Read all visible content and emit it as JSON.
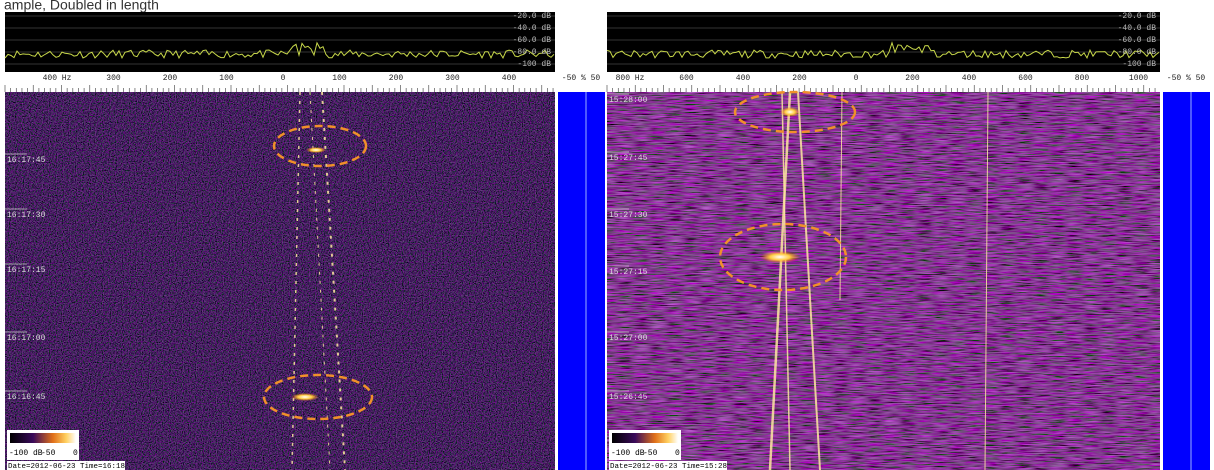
{
  "header": {
    "title": "ample, Doubled in length"
  },
  "panels": [
    {
      "db_labels": [
        "-20.0 dB",
        "-40.0 dB",
        "-60.0 dB",
        "-80.0 dB",
        "-100 dB"
      ],
      "freq_labels": [
        "400 Hz",
        "300",
        "200",
        "100",
        "0",
        "100",
        "200",
        "300",
        "400"
      ],
      "blue_scale": "-50 % 50",
      "time_labels": [
        "16:17:45",
        "16:17:30",
        "16:17:15",
        "16:17:00",
        "16:16:45"
      ],
      "colorbar_labels": [
        "-100 dB",
        "-50",
        "0"
      ],
      "footer": "Date=2012-06-23 Time=16:18"
    },
    {
      "db_labels": [
        "-20.0 dB",
        "-40.0 dB",
        "-60.0 dB",
        "-80.0 dB",
        "-100 dB"
      ],
      "freq_labels": [
        "800 Hz",
        "600",
        "400",
        "200",
        "0",
        "200",
        "400",
        "600",
        "800",
        "1000"
      ],
      "blue_scale": "-50 % 50",
      "time_labels": [
        "15:28:00",
        "15:27:45",
        "15:27:30",
        "15:27:15",
        "15:27:00",
        "15:26:45"
      ],
      "colorbar_labels": [
        "-100 dB",
        "-50",
        "0"
      ],
      "footer": "Date=2012-06-23 Time=15:28"
    }
  ]
}
